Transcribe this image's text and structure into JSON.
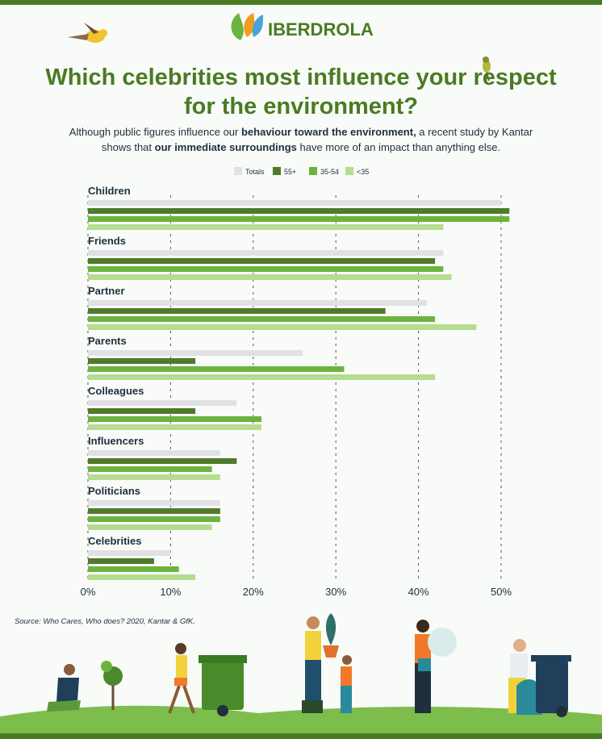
{
  "header": {
    "logo": "IBERDROLA"
  },
  "chart_data": {
    "type": "bar",
    "orientation": "horizontal",
    "title": [
      "Which celebrities most influence your respect",
      "for the environment?"
    ],
    "subtitle": [
      [
        "Although public figures influence our ",
        "behaviour toward the environment,",
        " a recent study by Kantar"
      ],
      [
        "shows that ",
        "our immediate surroundings",
        " have more of an impact than anything else."
      ]
    ],
    "categories": [
      "Children",
      "Friends",
      "Partner",
      "Parents",
      "Colleagues",
      "Influencers",
      "Politicians",
      "Celebrities"
    ],
    "series": [
      {
        "name": "Totals",
        "color": "#e1e1e4",
        "values": [
          50,
          43,
          41,
          26,
          18,
          16,
          16,
          10
        ]
      },
      {
        "name": "55+",
        "color": "#4f7a2a",
        "values": [
          51,
          42,
          36,
          13,
          13,
          18,
          16,
          8
        ]
      },
      {
        "name": "35-54",
        "color": "#6db33f",
        "values": [
          51,
          43,
          42,
          31,
          21,
          15,
          16,
          11
        ]
      },
      {
        "name": "<35",
        "color": "#b5dc8f",
        "values": [
          43,
          44,
          47,
          42,
          21,
          16,
          15,
          13
        ]
      }
    ],
    "xlim": [
      0,
      50
    ],
    "xticks": [
      {
        "value": 0,
        "label": "0%"
      },
      {
        "value": 10,
        "label": "10%"
      },
      {
        "value": 20,
        "label": "20%"
      },
      {
        "value": 30,
        "label": "30%"
      },
      {
        "value": 40,
        "label": "40%"
      },
      {
        "value": 50,
        "label": "50%"
      }
    ],
    "grid": true,
    "source": "Source: Who Cares, Who does? 2020, Kantar & GfK."
  }
}
